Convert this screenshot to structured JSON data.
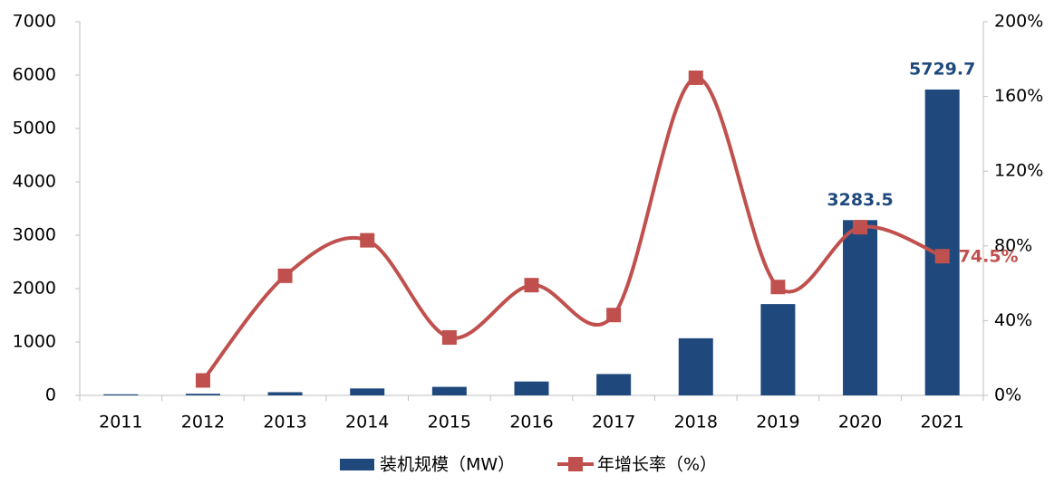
{
  "chart_data": {
    "type": "bar-line",
    "categories": [
      "2011",
      "2012",
      "2013",
      "2014",
      "2015",
      "2016",
      "2017",
      "2018",
      "2019",
      "2020",
      "2021"
    ],
    "series": [
      {
        "name": "装机规模（MW）",
        "type": "bar",
        "color": "#1f497d",
        "values": [
          20,
          30,
          60,
          130,
          160,
          260,
          400,
          1070,
          1710,
          3283.5,
          5729.7
        ],
        "value_labels": [
          null,
          null,
          null,
          null,
          null,
          null,
          null,
          null,
          null,
          "3283.5",
          "5729.7"
        ]
      },
      {
        "name": "年增长率（%）",
        "type": "line",
        "axis": "y2",
        "color": "#c0504d",
        "values": [
          null,
          8,
          64,
          83,
          31,
          59,
          43,
          170,
          58,
          90,
          74.5
        ],
        "value_labels": [
          null,
          null,
          null,
          null,
          null,
          null,
          null,
          null,
          null,
          null,
          "74.5%"
        ]
      }
    ],
    "ylim": [
      0,
      7000
    ],
    "yticks": [
      0,
      1000,
      2000,
      3000,
      4000,
      5000,
      6000,
      7000
    ],
    "y2lim": [
      0,
      200
    ],
    "y2ticks": [
      {
        "value": 0,
        "label": "0%"
      },
      {
        "value": 40,
        "label": "40%"
      },
      {
        "value": 80,
        "label": "80%"
      },
      {
        "value": 120,
        "label": "120%"
      },
      {
        "value": 160,
        "label": "160%"
      },
      {
        "value": 200,
        "label": "200%"
      }
    ],
    "legend": "bottom"
  }
}
